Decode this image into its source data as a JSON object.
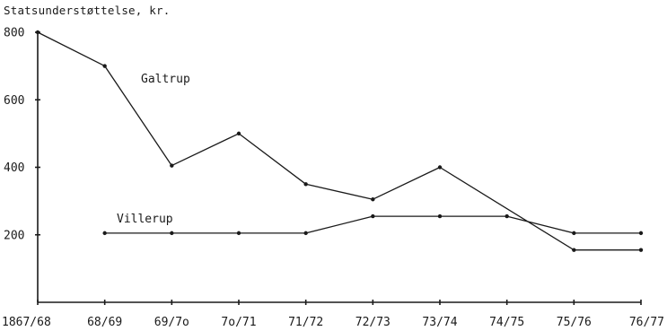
{
  "chart_data": {
    "type": "line",
    "ylabel": "Statsunderstøttelse, kr.",
    "categories": [
      "1867/68",
      "68/69",
      "69/7o",
      "7o/71",
      "71/72",
      "72/73",
      "73/74",
      "74/75",
      "75/76",
      "76/77"
    ],
    "yticks": [
      "200",
      "400",
      "600",
      "800"
    ],
    "ylim": [
      0,
      800
    ],
    "grid": false,
    "series": [
      {
        "name": "Galtrup",
        "values": [
          800,
          700,
          405,
          500,
          350,
          305,
          400,
          null,
          155,
          155
        ]
      },
      {
        "name": "Villerup",
        "values": [
          null,
          205,
          205,
          205,
          205,
          255,
          255,
          255,
          205,
          205
        ]
      }
    ]
  }
}
